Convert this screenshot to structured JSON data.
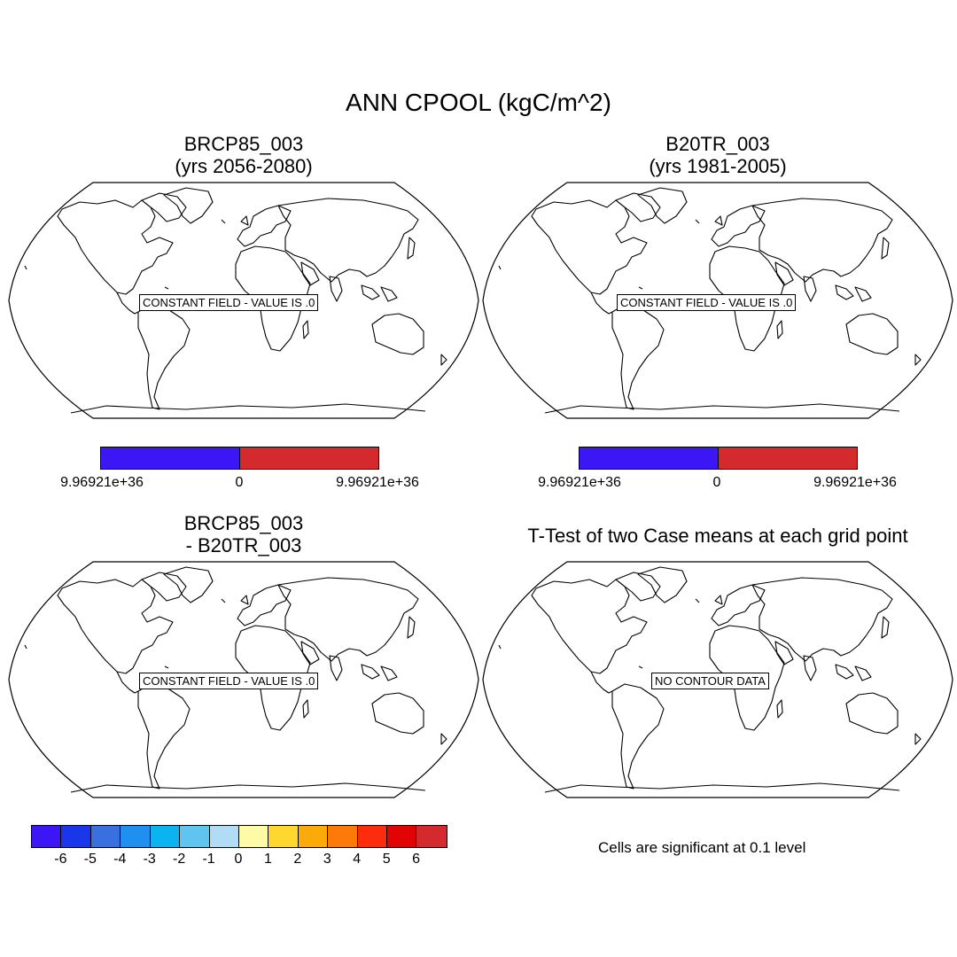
{
  "title": "ANN CPOOL (kgC/m^2)",
  "panels": [
    {
      "title1": "BRCP85_003",
      "title2": "(yrs 2056-2080)",
      "message": "CONSTANT FIELD - VALUE IS .0"
    },
    {
      "title1": "B20TR_003",
      "title2": "(yrs 1981-2005)",
      "message": "CONSTANT FIELD - VALUE IS .0"
    },
    {
      "title1": "BRCP85_003",
      "title2": "- B20TR_003",
      "message": "CONSTANT FIELD - VALUE IS .0"
    },
    {
      "title1": "T-Test of two Case means at each grid point",
      "message": "NO CONTOUR DATA"
    }
  ],
  "colorbar_top_left": {
    "colors": [
      "#3d16f5",
      "#d42a2d"
    ],
    "labels": [
      "9.96921e+36",
      "0",
      "9.96921e+36"
    ]
  },
  "colorbar_top_right": {
    "colors": [
      "#3d16f5",
      "#d42a2d"
    ],
    "labels": [
      "9.96921e+36",
      "0",
      "9.96921e+36"
    ]
  },
  "colorbar_diff": {
    "colors": [
      "#3d16f5",
      "#1a36ea",
      "#3a6fdf",
      "#1f90f0",
      "#0bb4f0",
      "#5fc5ef",
      "#b1dcf5",
      "#fffaa6",
      "#ffd82d",
      "#fcaa07",
      "#fb7a08",
      "#fd2c0c",
      "#e00403",
      "#d42a2d"
    ],
    "labels": [
      "-6",
      "-5",
      "-4",
      "-3",
      "-2",
      "-1",
      "0",
      "1",
      "2",
      "3",
      "4",
      "5",
      "6"
    ]
  },
  "ttest_note": "Cells are significant at 0.1 level"
}
